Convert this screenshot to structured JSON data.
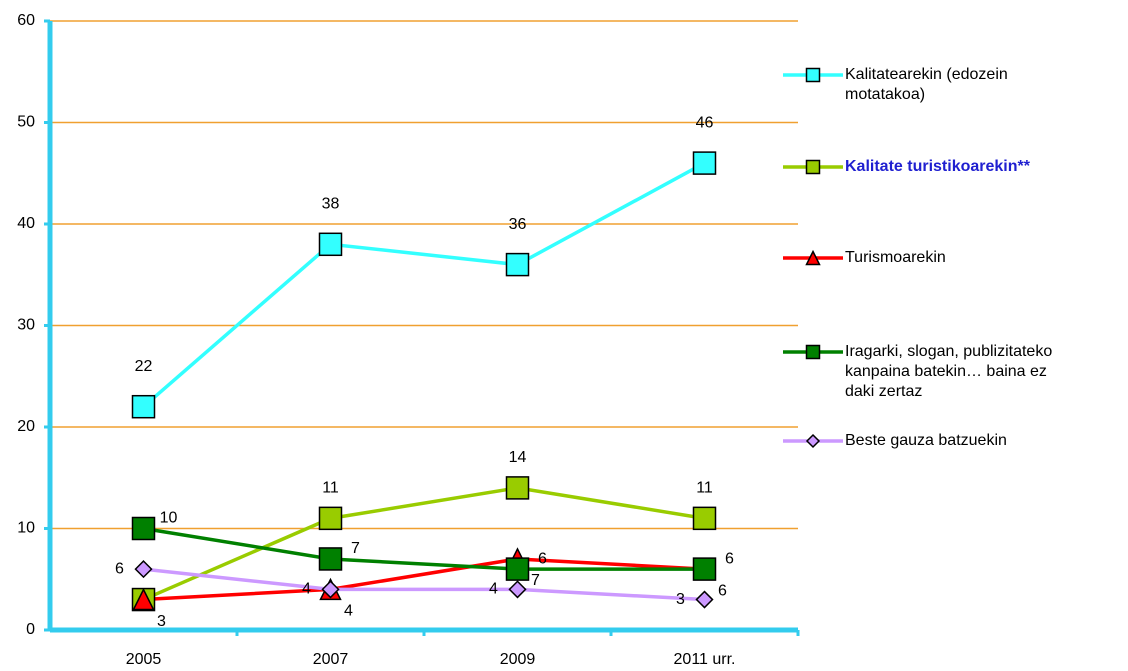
{
  "chart_data": {
    "type": "line",
    "categories": [
      "2005",
      "2007",
      "2009",
      "2011 urr."
    ],
    "ylim": [
      0,
      60
    ],
    "yticks": [
      0,
      10,
      20,
      30,
      40,
      50,
      60
    ],
    "grid": true,
    "series": [
      {
        "name": "Kalitatearekin (edozein motatakoa)",
        "color": "#33ffff",
        "marker": "square",
        "values": [
          22,
          38,
          36,
          46
        ]
      },
      {
        "name": "Kalitate turistikoarekin**",
        "color": "#99cc00",
        "marker": "square",
        "values": [
          3,
          11,
          14,
          11
        ]
      },
      {
        "name": "Turismoarekin",
        "color": "#ff0000",
        "marker": "triangle",
        "values": [
          3,
          4,
          7,
          6
        ]
      },
      {
        "name": "Iragarki, slogan, publizitateko kanpaina batekin… baina ez daki zertaz",
        "color": "#008000",
        "marker": "square",
        "values": [
          10,
          7,
          6,
          6
        ]
      },
      {
        "name": "Beste gauza batzuekin",
        "color": "#cc99ff",
        "marker": "diamond",
        "values": [
          6,
          4,
          4,
          3
        ]
      }
    ]
  }
}
